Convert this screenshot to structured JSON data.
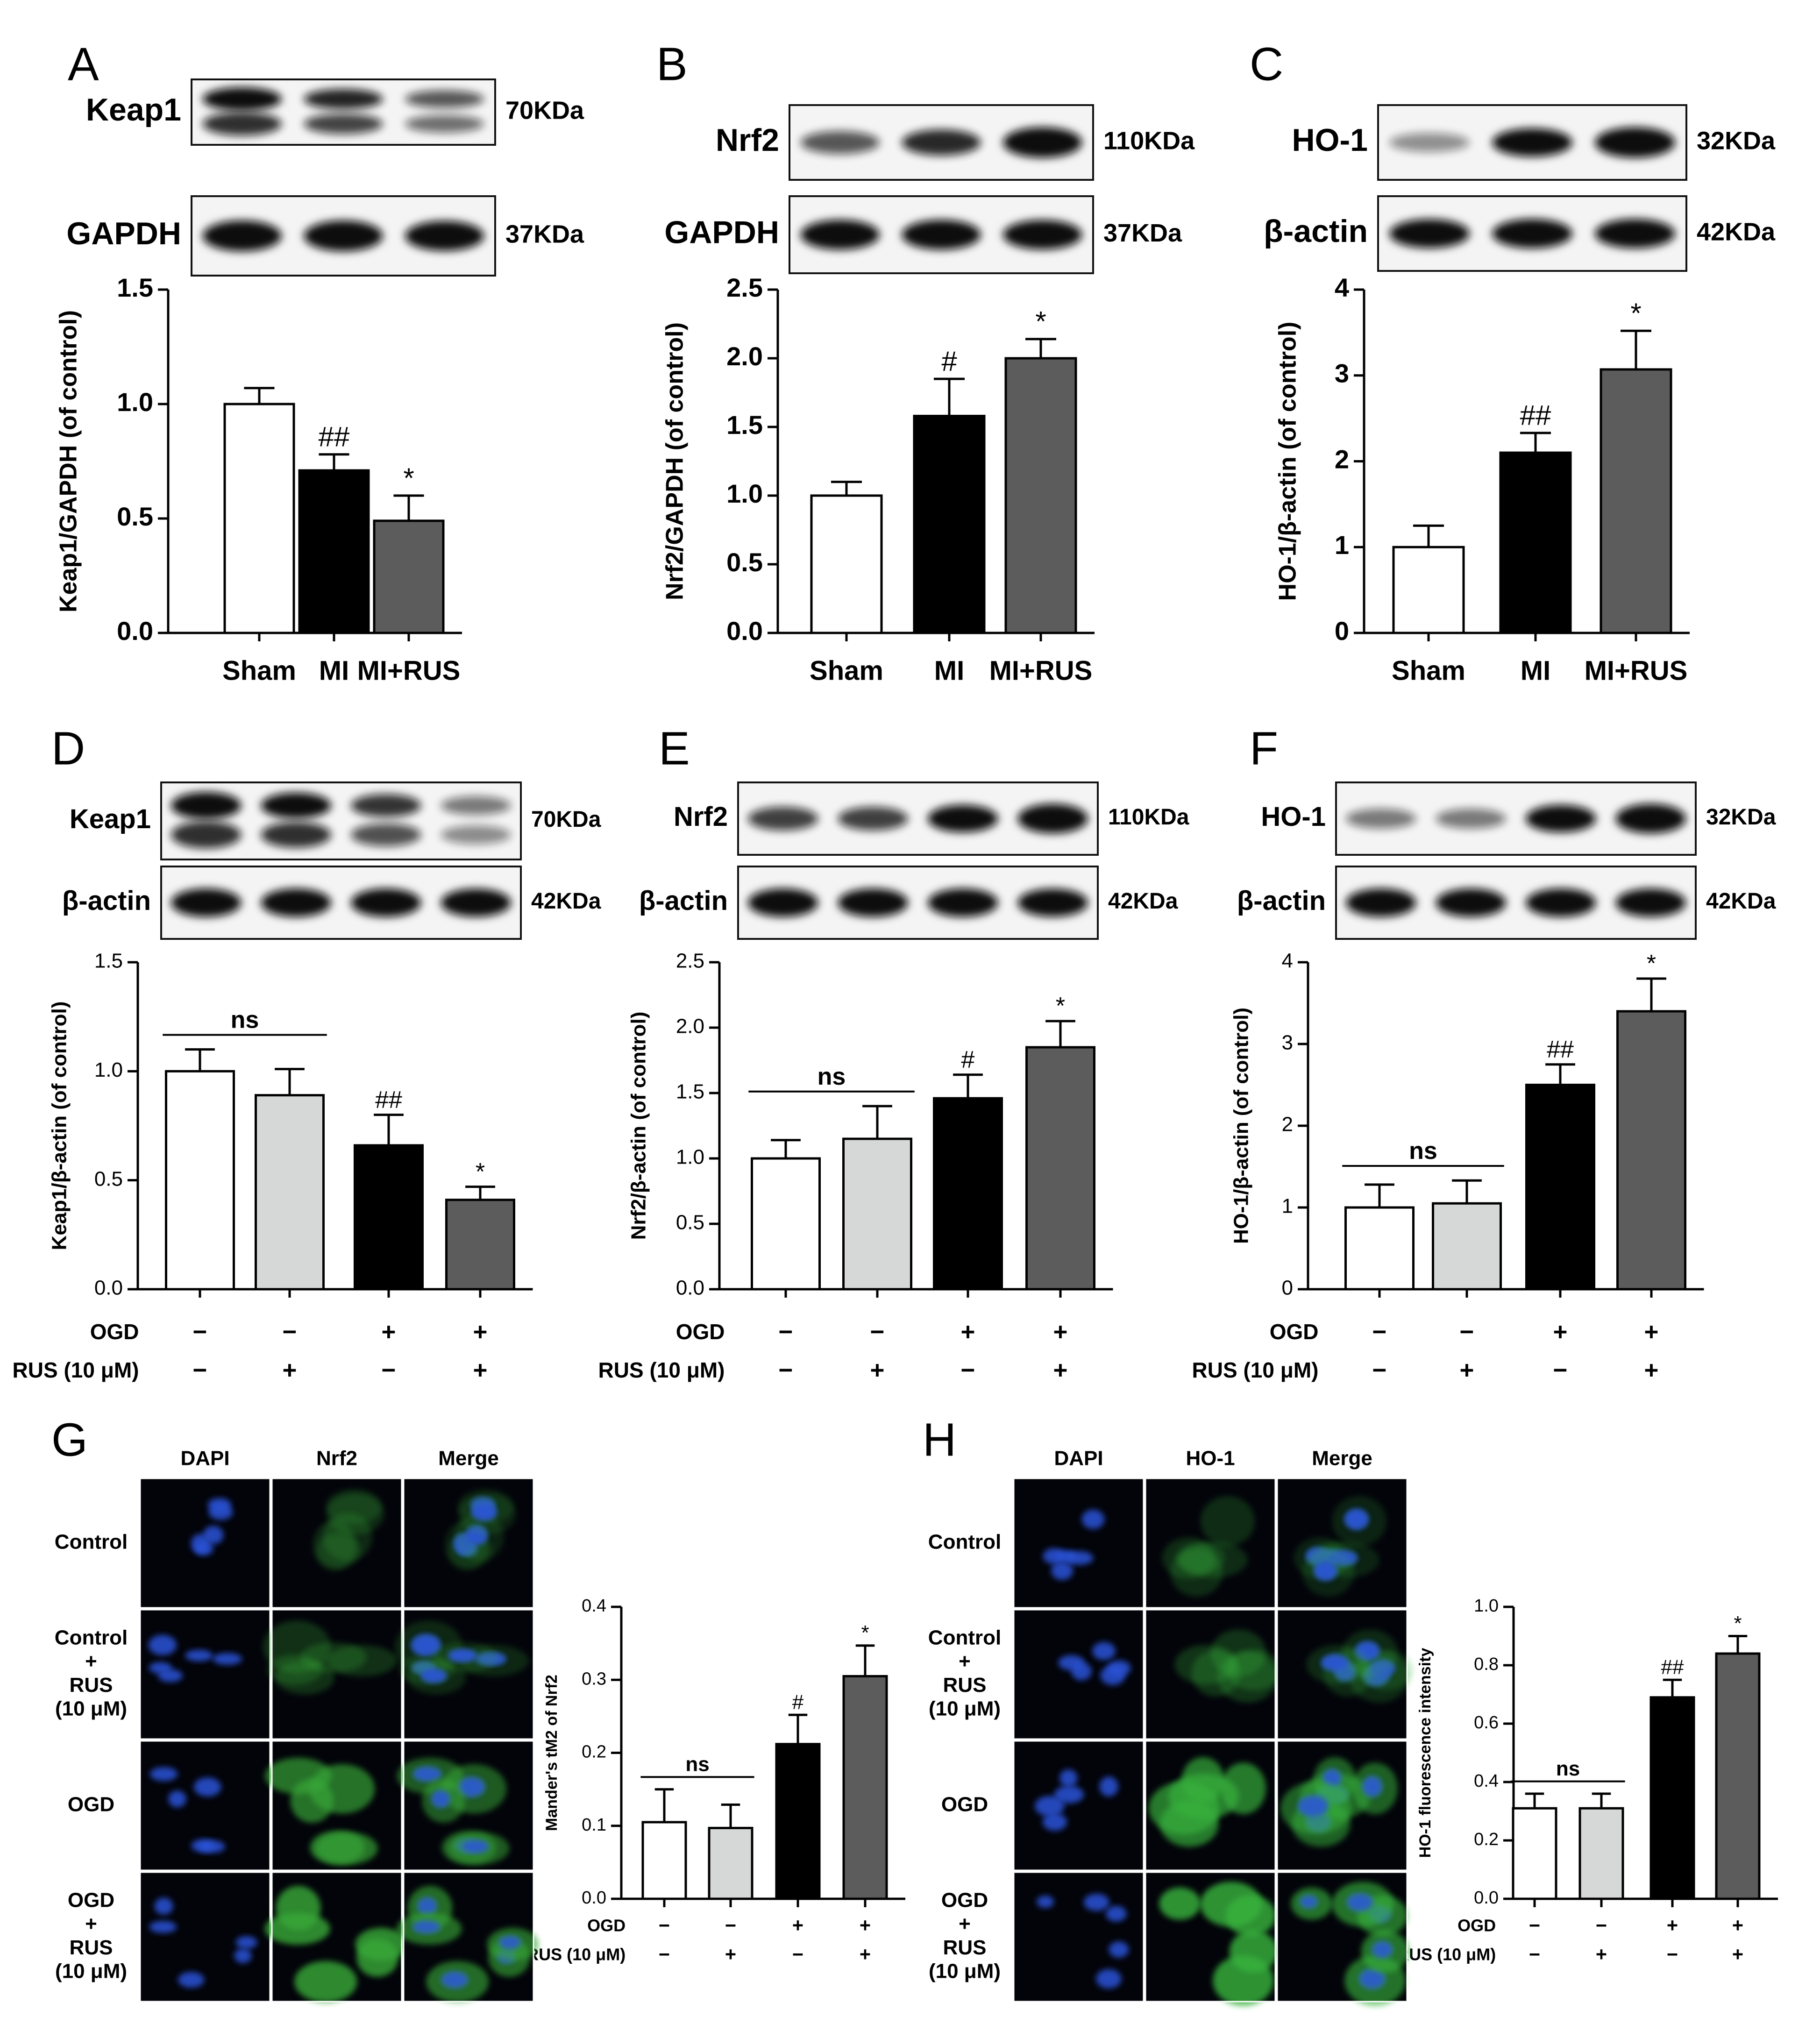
{
  "colors": {
    "sham": "#ffffff",
    "ctrl_rus": "#d6d8d8",
    "mi": "#000000",
    "rus": "#5c5c5c",
    "dapi": "#2a52d8",
    "nrf2": "#39a839",
    "ho1": "#39b33c"
  },
  "panels": [
    {
      "letter": "A",
      "blots": [
        {
          "protein": "Keap1",
          "kda": "70KDa",
          "bands": [
            0.98,
            0.72,
            0.5
          ],
          "double": true
        },
        {
          "protein": "GAPDH",
          "kda": "37KDa",
          "bands": [
            0.9,
            0.9,
            0.85
          ],
          "double": false
        }
      ]
    },
    {
      "letter": "B",
      "blots": [
        {
          "protein": "Nrf2",
          "kda": "110KDa",
          "bands": [
            0.5,
            0.7,
            1.0
          ],
          "double": false
        },
        {
          "protein": "GAPDH",
          "kda": "37KDa",
          "bands": [
            0.9,
            0.9,
            0.88
          ],
          "double": false
        }
      ]
    },
    {
      "letter": "C",
      "blots": [
        {
          "protein": "HO-1",
          "kda": "32KDa",
          "bands": [
            0.25,
            0.85,
            1.0
          ],
          "double": false
        },
        {
          "protein": "β-actin",
          "kda": "42KDa",
          "bands": [
            0.9,
            0.92,
            0.92
          ],
          "double": false
        }
      ]
    },
    {
      "letter": "D",
      "blots": [
        {
          "protein": "Keap1",
          "kda": "70KDa",
          "bands": [
            0.95,
            0.85,
            0.65,
            0.35
          ],
          "double": true
        },
        {
          "protein": "β-actin",
          "kda": "42KDa",
          "bands": [
            0.92,
            0.92,
            0.92,
            0.9
          ],
          "double": false
        }
      ]
    },
    {
      "letter": "E",
      "blots": [
        {
          "protein": "Nrf2",
          "kda": "110KDa",
          "bands": [
            0.6,
            0.6,
            0.85,
            1.0
          ],
          "double": false
        },
        {
          "protein": "β-actin",
          "kda": "42KDa",
          "bands": [
            0.92,
            0.92,
            0.92,
            0.9
          ],
          "double": false
        }
      ]
    },
    {
      "letter": "F",
      "blots": [
        {
          "protein": "HO-1",
          "kda": "32KDa",
          "bands": [
            0.35,
            0.35,
            0.85,
            1.0
          ],
          "double": false
        },
        {
          "protein": "β-actin",
          "kda": "42KDa",
          "bands": [
            0.92,
            0.92,
            0.92,
            0.92
          ],
          "double": false
        }
      ]
    },
    {
      "letter": "G",
      "columns": [
        "DAPI",
        "Nrf2",
        "Merge"
      ],
      "rows": [
        "Control",
        "Control\n+\nRUS\n(10 μM)",
        "OGD",
        "OGD\n+\nRUS\n(10 μM)"
      ]
    },
    {
      "letter": "H",
      "columns": [
        "DAPI",
        "HO-1",
        "Merge"
      ],
      "rows": [
        "Control",
        "Control\n+\nRUS\n(10 μM)",
        "OGD",
        "OGD\n+\nRUS\n(10 μM)"
      ]
    }
  ],
  "labels": {
    "ogd": "OGD",
    "rus": "RUS (10 μM)"
  },
  "chart_data": [
    {
      "panel": "A",
      "type": "bar",
      "categories": [
        "Sham",
        "MI",
        "MI+RUS"
      ],
      "values": [
        1.0,
        0.71,
        0.49
      ],
      "errors": [
        0.07,
        0.07,
        0.11
      ],
      "ylabel": "Keap1/GAPDH (of control)",
      "ylim": [
        0,
        1.5
      ],
      "ticks": [
        "0.0",
        "0.5",
        "1.0",
        "1.5"
      ],
      "annotations": [
        "",
        "##",
        "*"
      ],
      "colors": [
        "sham",
        "mi",
        "rus"
      ]
    },
    {
      "panel": "B",
      "type": "bar",
      "categories": [
        "Sham",
        "MI",
        "MI+RUS"
      ],
      "values": [
        1.0,
        1.58,
        2.0
      ],
      "errors": [
        0.1,
        0.27,
        0.14
      ],
      "ylabel": "Nrf2/GAPDH (of control)",
      "ylim": [
        0,
        2.5
      ],
      "ticks": [
        "0.0",
        "0.5",
        "1.0",
        "1.5",
        "2.0",
        "2.5"
      ],
      "annotations": [
        "",
        "#",
        "*"
      ],
      "colors": [
        "sham",
        "mi",
        "rus"
      ]
    },
    {
      "panel": "C",
      "type": "bar",
      "categories": [
        "Sham",
        "MI",
        "MI+RUS"
      ],
      "values": [
        1.0,
        2.1,
        3.07
      ],
      "errors": [
        0.25,
        0.23,
        0.45
      ],
      "ylabel": "HO-1/β-actin (of control)",
      "ylim": [
        0,
        4
      ],
      "ticks": [
        "0",
        "1",
        "2",
        "3",
        "4"
      ],
      "annotations": [
        "",
        "##",
        "*"
      ],
      "colors": [
        "sham",
        "mi",
        "rus"
      ]
    },
    {
      "panel": "D",
      "type": "bar",
      "ogd": [
        "−",
        "−",
        "+",
        "+"
      ],
      "rus": [
        "−",
        "+",
        "−",
        "+"
      ],
      "values": [
        1.0,
        0.89,
        0.66,
        0.41
      ],
      "errors": [
        0.1,
        0.12,
        0.14,
        0.06
      ],
      "ylabel": "Keap1/β-actin (of control)",
      "ylim": [
        0,
        1.5
      ],
      "ticks": [
        "0.0",
        "0.5",
        "1.0",
        "1.5"
      ],
      "annotations": [
        "",
        "",
        "##",
        "*"
      ],
      "ns": "ns",
      "colors": [
        "sham",
        "ctrl_rus",
        "mi",
        "rus"
      ]
    },
    {
      "panel": "E",
      "type": "bar",
      "ogd": [
        "−",
        "−",
        "+",
        "+"
      ],
      "rus": [
        "−",
        "+",
        "−",
        "+"
      ],
      "values": [
        1.0,
        1.15,
        1.46,
        1.85
      ],
      "errors": [
        0.14,
        0.25,
        0.18,
        0.2
      ],
      "ylabel": "Nrf2/β-actin (of control)",
      "ylim": [
        0,
        2.5
      ],
      "ticks": [
        "0.0",
        "0.5",
        "1.0",
        "1.5",
        "2.0",
        "2.5"
      ],
      "annotations": [
        "",
        "",
        "#",
        "*"
      ],
      "ns": "ns",
      "colors": [
        "sham",
        "ctrl_rus",
        "mi",
        "rus"
      ]
    },
    {
      "panel": "F",
      "type": "bar",
      "ogd": [
        "−",
        "−",
        "+",
        "+"
      ],
      "rus": [
        "−",
        "+",
        "−",
        "+"
      ],
      "values": [
        1.0,
        1.05,
        2.5,
        3.4
      ],
      "errors": [
        0.28,
        0.28,
        0.25,
        0.4
      ],
      "ylabel": "HO-1/β-actin (of control)",
      "ylim": [
        0,
        4
      ],
      "ticks": [
        "0",
        "1",
        "2",
        "3",
        "4"
      ],
      "annotations": [
        "",
        "",
        "##",
        "*"
      ],
      "ns": "ns",
      "colors": [
        "sham",
        "ctrl_rus",
        "mi",
        "rus"
      ]
    },
    {
      "panel": "G",
      "type": "bar",
      "ogd": [
        "−",
        "−",
        "+",
        "+"
      ],
      "rus": [
        "−",
        "+",
        "−",
        "+"
      ],
      "values": [
        0.105,
        0.097,
        0.212,
        0.305
      ],
      "errors": [
        0.045,
        0.032,
        0.04,
        0.042
      ],
      "ylabel": "Mander's tM2 of Nrf2",
      "ylim": [
        0,
        0.4
      ],
      "ticks": [
        "0.0",
        "0.1",
        "0.2",
        "0.3",
        "0.4"
      ],
      "annotations": [
        "",
        "",
        "#",
        "*"
      ],
      "ns": "ns",
      "colors": [
        "sham",
        "ctrl_rus",
        "mi",
        "rus"
      ]
    },
    {
      "panel": "H",
      "type": "bar",
      "ogd": [
        "−",
        "−",
        "+",
        "+"
      ],
      "rus": [
        "−",
        "+",
        "−",
        "+"
      ],
      "values": [
        0.31,
        0.31,
        0.69,
        0.84
      ],
      "errors": [
        0.05,
        0.05,
        0.06,
        0.06
      ],
      "ylabel": "HO-1 fluorescence intensity",
      "ylim": [
        0,
        1.0
      ],
      "ticks": [
        "0.0",
        "0.2",
        "0.4",
        "0.6",
        "0.8",
        "1.0"
      ],
      "annotations": [
        "",
        "",
        "##",
        "*"
      ],
      "ns": "ns",
      "colors": [
        "sham",
        "ctrl_rus",
        "mi",
        "rus"
      ]
    }
  ]
}
